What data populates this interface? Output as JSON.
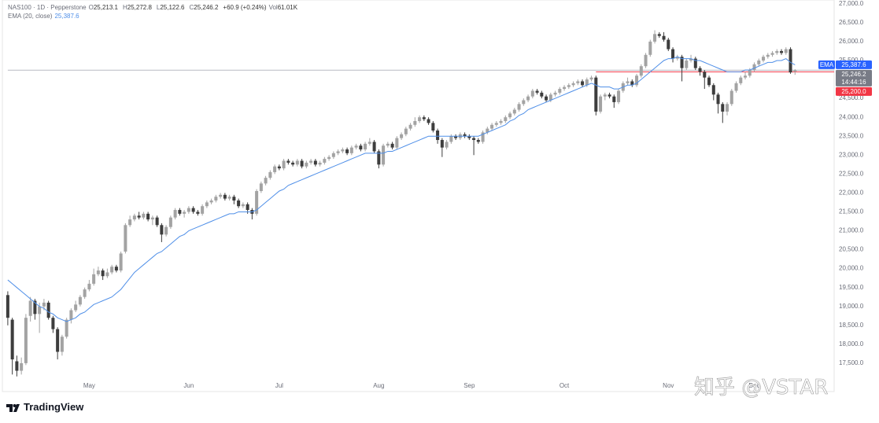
{
  "chart_data": {
    "type": "candlestick",
    "title": "NAS100 · 1D · Pepperstone",
    "ohlc_legend": [
      {
        "label": "O",
        "value": "25,213.1"
      },
      {
        "label": "H",
        "value": "25,272.8"
      },
      {
        "label": "L",
        "value": "25,122.6"
      },
      {
        "label": "C",
        "value": "25,246.2"
      }
    ],
    "change": "+60.9 (+0.24%)",
    "volume": {
      "label": "Vol",
      "value": "61.01K"
    },
    "up_color": "#a3a3a3",
    "down_color": "#3d3d3d",
    "candles": [
      [
        19300,
        19400,
        18500,
        18700
      ],
      [
        18650,
        18700,
        17200,
        17600
      ],
      [
        17550,
        17700,
        17150,
        17300
      ],
      [
        17300,
        17650,
        17200,
        17500
      ],
      [
        17500,
        18800,
        17450,
        18700
      ],
      [
        18750,
        19250,
        18600,
        19150
      ],
      [
        19150,
        19200,
        18650,
        18800
      ],
      [
        18800,
        19100,
        18300,
        19000
      ],
      [
        19000,
        19200,
        18900,
        19100
      ],
      [
        19100,
        19150,
        18650,
        18700
      ],
      [
        18700,
        18750,
        18300,
        18400
      ],
      [
        18400,
        18450,
        17600,
        17800
      ],
      [
        17800,
        18250,
        17700,
        18200
      ],
      [
        18200,
        18700,
        18150,
        18650
      ],
      [
        18650,
        18950,
        18550,
        18900
      ],
      [
        18900,
        19150,
        18850,
        19050
      ],
      [
        19050,
        19300,
        19000,
        19250
      ],
      [
        19250,
        19500,
        19200,
        19450
      ],
      [
        19450,
        19700,
        19400,
        19600
      ],
      [
        19600,
        20000,
        19550,
        19850
      ],
      [
        19850,
        20050,
        19800,
        19950
      ],
      [
        19950,
        20000,
        19700,
        19800
      ],
      [
        19800,
        20000,
        19750,
        19900
      ],
      [
        19900,
        20100,
        19850,
        20050
      ],
      [
        20050,
        20100,
        19900,
        19950
      ],
      [
        19950,
        20450,
        19900,
        20400
      ],
      [
        20450,
        21200,
        20400,
        21150
      ],
      [
        21150,
        21400,
        21100,
        21300
      ],
      [
        21300,
        21450,
        21250,
        21400
      ],
      [
        21400,
        21500,
        21300,
        21350
      ],
      [
        21350,
        21500,
        21300,
        21450
      ],
      [
        21450,
        21500,
        21250,
        21300
      ],
      [
        21300,
        21400,
        21150,
        21350
      ],
      [
        21350,
        21400,
        21100,
        21150
      ],
      [
        21150,
        21200,
        20700,
        20900
      ],
      [
        20900,
        21150,
        20850,
        21100
      ],
      [
        21100,
        21400,
        21050,
        21350
      ],
      [
        21350,
        21600,
        21300,
        21550
      ],
      [
        21550,
        21600,
        21400,
        21450
      ],
      [
        21450,
        21550,
        21350,
        21500
      ],
      [
        21500,
        21650,
        21450,
        21600
      ],
      [
        21600,
        21650,
        21450,
        21500
      ],
      [
        21500,
        21550,
        21400,
        21450
      ],
      [
        21450,
        21700,
        21400,
        21650
      ],
      [
        21650,
        21800,
        21600,
        21750
      ],
      [
        21750,
        21850,
        21700,
        21800
      ],
      [
        21800,
        21950,
        21750,
        21900
      ],
      [
        21900,
        22000,
        21850,
        21950
      ],
      [
        21950,
        22000,
        21800,
        21850
      ],
      [
        21850,
        21950,
        21800,
        21900
      ],
      [
        21900,
        21950,
        21700,
        21800
      ],
      [
        21800,
        21850,
        21600,
        21650
      ],
      [
        21650,
        21750,
        21600,
        21700
      ],
      [
        21700,
        21750,
        21450,
        21550
      ],
      [
        21550,
        21600,
        21300,
        21450
      ],
      [
        21450,
        22100,
        21400,
        22050
      ],
      [
        22050,
        22300,
        22000,
        22250
      ],
      [
        22250,
        22450,
        22200,
        22400
      ],
      [
        22400,
        22600,
        22350,
        22550
      ],
      [
        22550,
        22750,
        22500,
        22700
      ],
      [
        22700,
        22750,
        22600,
        22650
      ],
      [
        22650,
        22900,
        22600,
        22850
      ],
      [
        22850,
        22900,
        22750,
        22800
      ],
      [
        22800,
        22850,
        22700,
        22750
      ],
      [
        22750,
        22900,
        22700,
        22850
      ],
      [
        22850,
        22900,
        22650,
        22700
      ],
      [
        22700,
        22850,
        22650,
        22800
      ],
      [
        22800,
        22900,
        22750,
        22850
      ],
      [
        22850,
        22900,
        22700,
        22750
      ],
      [
        22750,
        22850,
        22700,
        22800
      ],
      [
        22800,
        22950,
        22750,
        22900
      ],
      [
        22900,
        23000,
        22850,
        22950
      ],
      [
        22950,
        23100,
        22900,
        23050
      ],
      [
        23050,
        23150,
        23000,
        23100
      ],
      [
        23100,
        23200,
        23050,
        23150
      ],
      [
        23150,
        23200,
        23000,
        23050
      ],
      [
        23050,
        23250,
        23000,
        23200
      ],
      [
        23200,
        23300,
        23150,
        23250
      ],
      [
        23250,
        23300,
        23100,
        23150
      ],
      [
        23150,
        23350,
        23100,
        23300
      ],
      [
        23300,
        23450,
        23250,
        23350
      ],
      [
        23350,
        23400,
        23050,
        23100
      ],
      [
        23100,
        23150,
        22650,
        22750
      ],
      [
        22750,
        23300,
        22700,
        23250
      ],
      [
        23250,
        23350,
        23200,
        23300
      ],
      [
        23300,
        23350,
        23150,
        23200
      ],
      [
        23200,
        23500,
        23150,
        23450
      ],
      [
        23450,
        23600,
        23400,
        23550
      ],
      [
        23550,
        23750,
        23500,
        23700
      ],
      [
        23700,
        23850,
        23650,
        23800
      ],
      [
        23800,
        24000,
        23750,
        23900
      ],
      [
        23900,
        24050,
        23850,
        24000
      ],
      [
        24000,
        24050,
        23900,
        23950
      ],
      [
        23950,
        24000,
        23800,
        23850
      ],
      [
        23850,
        23900,
        23600,
        23650
      ],
      [
        23650,
        23700,
        23300,
        23400
      ],
      [
        23400,
        23450,
        22950,
        23200
      ],
      [
        23200,
        23400,
        23150,
        23350
      ],
      [
        23350,
        23550,
        23300,
        23500
      ],
      [
        23500,
        23550,
        23400,
        23450
      ],
      [
        23450,
        23600,
        23400,
        23550
      ],
      [
        23550,
        23600,
        23450,
        23500
      ],
      [
        23500,
        23550,
        23400,
        23450
      ],
      [
        23450,
        23500,
        23000,
        23400
      ],
      [
        23400,
        23450,
        23300,
        23350
      ],
      [
        23350,
        23650,
        23300,
        23600
      ],
      [
        23600,
        23750,
        23550,
        23700
      ],
      [
        23700,
        23850,
        23650,
        23800
      ],
      [
        23800,
        23900,
        23750,
        23850
      ],
      [
        23850,
        23950,
        23800,
        23900
      ],
      [
        23900,
        24050,
        23850,
        24000
      ],
      [
        24000,
        24150,
        23950,
        24100
      ],
      [
        24100,
        24250,
        24050,
        24200
      ],
      [
        24200,
        24400,
        24150,
        24350
      ],
      [
        24350,
        24500,
        24300,
        24450
      ],
      [
        24450,
        24600,
        24400,
        24550
      ],
      [
        24550,
        24750,
        24500,
        24700
      ],
      [
        24700,
        24750,
        24600,
        24650
      ],
      [
        24650,
        24700,
        24500,
        24550
      ],
      [
        24550,
        24600,
        24400,
        24450
      ],
      [
        24450,
        24650,
        24400,
        24600
      ],
      [
        24600,
        24700,
        24550,
        24650
      ],
      [
        24650,
        24800,
        24600,
        24750
      ],
      [
        24750,
        24850,
        24700,
        24800
      ],
      [
        24800,
        24900,
        24750,
        24850
      ],
      [
        24850,
        24950,
        24800,
        24900
      ],
      [
        24900,
        25000,
        24850,
        24950
      ],
      [
        24950,
        25000,
        24800,
        24850
      ],
      [
        24850,
        25050,
        24800,
        25000
      ],
      [
        25000,
        25100,
        24950,
        25050
      ],
      [
        25050,
        25100,
        24050,
        24150
      ],
      [
        24150,
        24600,
        24100,
        24550
      ],
      [
        24550,
        24650,
        24450,
        24600
      ],
      [
        24600,
        24650,
        24500,
        24550
      ],
      [
        24550,
        24600,
        24250,
        24400
      ],
      [
        24400,
        24750,
        24350,
        24700
      ],
      [
        24700,
        24950,
        24650,
        24900
      ],
      [
        24900,
        25050,
        24850,
        24950
      ],
      [
        24950,
        25000,
        24800,
        24850
      ],
      [
        24850,
        25150,
        24800,
        25100
      ],
      [
        25100,
        25400,
        25050,
        25350
      ],
      [
        25350,
        25700,
        25300,
        25650
      ],
      [
        25650,
        26050,
        25600,
        26000
      ],
      [
        26000,
        26300,
        25950,
        26200
      ],
      [
        26200,
        26250,
        26100,
        26150
      ],
      [
        26150,
        26250,
        26000,
        26050
      ],
      [
        26050,
        26100,
        25750,
        25800
      ],
      [
        25800,
        25850,
        25450,
        25550
      ],
      [
        25550,
        25650,
        25500,
        25600
      ],
      [
        25600,
        25650,
        24950,
        25300
      ],
      [
        25300,
        25550,
        25250,
        25500
      ],
      [
        25500,
        25650,
        25450,
        25550
      ],
      [
        25550,
        25600,
        25250,
        25300
      ],
      [
        25300,
        25350,
        25100,
        25200
      ],
      [
        25200,
        25250,
        24750,
        25050
      ],
      [
        25050,
        25100,
        24800,
        24850
      ],
      [
        24850,
        24900,
        24450,
        24600
      ],
      [
        24600,
        24650,
        24100,
        24350
      ],
      [
        24350,
        24400,
        23850,
        24150
      ],
      [
        24150,
        24400,
        24050,
        24350
      ],
      [
        24350,
        24750,
        24300,
        24700
      ],
      [
        24700,
        24950,
        24650,
        24900
      ],
      [
        24900,
        25100,
        24850,
        25050
      ],
      [
        25050,
        25200,
        25000,
        25100
      ],
      [
        25100,
        25300,
        25050,
        25250
      ],
      [
        25250,
        25450,
        25200,
        25400
      ],
      [
        25400,
        25550,
        25350,
        25500
      ],
      [
        25500,
        25650,
        25450,
        25600
      ],
      [
        25600,
        25700,
        25550,
        25650
      ],
      [
        25650,
        25750,
        25600,
        25700
      ],
      [
        25700,
        25800,
        25650,
        25750
      ],
      [
        25750,
        25800,
        25650,
        25700
      ],
      [
        25700,
        25850,
        25650,
        25800
      ],
      [
        25800,
        25850,
        25150,
        25185
      ],
      [
        25213.1,
        25272.8,
        25122.6,
        25246.2
      ]
    ],
    "overlays": [
      {
        "name": "EMA (20, close)",
        "legend_value": "25,387.6",
        "color": "#4f8fe8",
        "values": [
          19700,
          19600,
          19500,
          19400,
          19300,
          19200,
          19100,
          19000,
          18950,
          18850,
          18800,
          18700,
          18650,
          18600,
          18650,
          18700,
          18800,
          18850,
          18950,
          19050,
          19100,
          19150,
          19200,
          19250,
          19350,
          19450,
          19600,
          19750,
          19900,
          20000,
          20100,
          20200,
          20300,
          20400,
          20450,
          20550,
          20650,
          20750,
          20850,
          20900,
          21000,
          21050,
          21100,
          21150,
          21200,
          21250,
          21300,
          21350,
          21400,
          21450,
          21450,
          21500,
          21500,
          21500,
          21500,
          21550,
          21650,
          21750,
          21850,
          21950,
          22050,
          22100,
          22200,
          22250,
          22300,
          22350,
          22400,
          22450,
          22500,
          22550,
          22600,
          22650,
          22700,
          22750,
          22800,
          22850,
          22900,
          22950,
          23000,
          23050,
          23050,
          23050,
          23050,
          23050,
          23100,
          23100,
          23150,
          23200,
          23250,
          23300,
          23350,
          23400,
          23450,
          23500,
          23500,
          23500,
          23500,
          23500,
          23500,
          23500,
          23500,
          23500,
          23500,
          23500,
          23500,
          23550,
          23600,
          23650,
          23700,
          23750,
          23800,
          23900,
          23950,
          24050,
          24100,
          24200,
          24250,
          24300,
          24350,
          24400,
          24450,
          24500,
          24550,
          24600,
          24650,
          24700,
          24750,
          24800,
          24850,
          24900,
          24850,
          24800,
          24800,
          24800,
          24750,
          24750,
          24800,
          24850,
          24850,
          24900,
          25000,
          25100,
          25200,
          25300,
          25400,
          25500,
          25550,
          25550,
          25600,
          25550,
          25550,
          25550,
          25500,
          25500,
          25450,
          25400,
          25350,
          25300,
          25250,
          25200,
          25200,
          25200,
          25200,
          25250,
          25250,
          25300,
          25350,
          25400,
          25450,
          25450,
          25500,
          25500,
          25550,
          25450,
          25387.6
        ]
      }
    ],
    "horizontal_lines": [
      {
        "value": 25246.2,
        "color": "#b8bcc4",
        "from_index": 0
      },
      {
        "value": 25200,
        "color": "#f23645",
        "from_index": 130
      }
    ],
    "price_labels": [
      {
        "tag": "EMA",
        "value": 25387.6,
        "label": "25,387.6",
        "color": "#2962ff"
      },
      {
        "value": 25246.2,
        "label": "25,246.2",
        "sublabel": "14:44:16",
        "color": "#787b86"
      },
      {
        "value": 25200,
        "label": "25,200.0",
        "color": "#f23645"
      }
    ],
    "xlim": [
      -1.2,
      182.3
    ],
    "xticks": [
      {
        "value": 18,
        "label": "May"
      },
      {
        "value": 40,
        "label": "Jun"
      },
      {
        "value": 60,
        "label": "Jul"
      },
      {
        "value": 82,
        "label": "Aug"
      },
      {
        "value": 102,
        "label": "Sep"
      },
      {
        "value": 123,
        "label": "Oct"
      },
      {
        "value": 146,
        "label": "Nov"
      },
      {
        "value": 165,
        "label": "Dec"
      }
    ],
    "ylim": [
      16750,
      27100
    ],
    "yticks": [
      {
        "value": 17500,
        "label": "17,500.0"
      },
      {
        "value": 18000,
        "label": "18,000.0"
      },
      {
        "value": 18500,
        "label": "18,500.0"
      },
      {
        "value": 19000,
        "label": "19,000.0"
      },
      {
        "value": 19500,
        "label": "19,500.0"
      },
      {
        "value": 20000,
        "label": "20,000.0"
      },
      {
        "value": 20500,
        "label": "20,500.0"
      },
      {
        "value": 21000,
        "label": "21,000.0"
      },
      {
        "value": 21500,
        "label": "21,500.0"
      },
      {
        "value": 22000,
        "label": "22,000.0"
      },
      {
        "value": 22500,
        "label": "22,500.0"
      },
      {
        "value": 23000,
        "label": "23,000.0"
      },
      {
        "value": 23500,
        "label": "23,500.0"
      },
      {
        "value": 24000,
        "label": "24,000.0"
      },
      {
        "value": 24500,
        "label": "24,500.0"
      },
      {
        "value": 25000,
        "label": "25,000.0"
      },
      {
        "value": 25500,
        "label": "25,500.0"
      },
      {
        "value": 26000,
        "label": "26,000.0"
      },
      {
        "value": 26500,
        "label": "26,500.0"
      },
      {
        "value": 27000,
        "label": "27,000.0"
      }
    ],
    "grid": false,
    "brand": "TradingView",
    "watermark": "知乎 @VSTAR"
  }
}
